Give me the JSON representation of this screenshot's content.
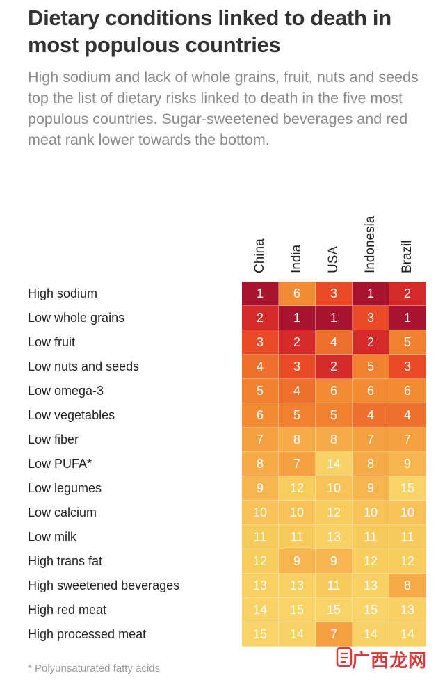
{
  "title": "Dietary conditions linked to death in most populous countries",
  "subtitle": "High sodium and lack of whole grains, fruit, nuts and seeds top the list of dietary risks linked to death in the five most populous countries. Sugar-sweetened beverages and red meat rank lower towards the bottom.",
  "footnote": "* Polyunsaturated fatty acids",
  "watermark": "广西龙网",
  "chart_data": {
    "type": "heatmap",
    "columns": [
      "China",
      "India",
      "USA",
      "Indonesia",
      "Brazil"
    ],
    "rows": [
      "High sodium",
      "Low whole grains",
      "Low fruit",
      "Low nuts and seeds",
      "Low omega-3",
      "Low vegetables",
      "Low fiber",
      "Low PUFA*",
      "Low legumes",
      "Low calcium",
      "Low milk",
      "High trans fat",
      "High sweetened beverages",
      "High red meat",
      "High processed meat"
    ],
    "values": [
      [
        1,
        6,
        3,
        1,
        2
      ],
      [
        2,
        1,
        1,
        3,
        1
      ],
      [
        3,
        2,
        4,
        2,
        5
      ],
      [
        4,
        3,
        2,
        5,
        3
      ],
      [
        5,
        4,
        6,
        6,
        6
      ],
      [
        6,
        5,
        5,
        4,
        4
      ],
      [
        7,
        8,
        8,
        7,
        7
      ],
      [
        8,
        7,
        14,
        8,
        9
      ],
      [
        9,
        12,
        10,
        9,
        15
      ],
      [
        10,
        10,
        12,
        10,
        10
      ],
      [
        11,
        11,
        13,
        11,
        11
      ],
      [
        12,
        9,
        9,
        12,
        12
      ],
      [
        13,
        13,
        11,
        13,
        8
      ],
      [
        14,
        15,
        15,
        15,
        13
      ],
      [
        15,
        14,
        7,
        14,
        14
      ]
    ],
    "color_scale": {
      "1": "#a8132e",
      "2": "#d42a2a",
      "3": "#ea4a26",
      "4": "#ef6f2c",
      "5": "#f2812f",
      "6": "#f38b33",
      "7": "#f5a040",
      "8": "#f5ab48",
      "9": "#f6b54f",
      "10": "#f7c358",
      "11": "#f7ca5c",
      "12": "#f8cd5e",
      "13": "#f8d063",
      "14": "#f8d266",
      "15": "#f8d468"
    }
  }
}
